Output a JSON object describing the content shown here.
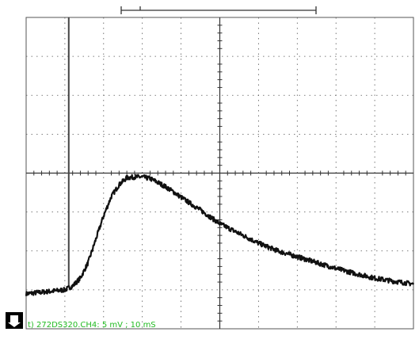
{
  "chart_data": {
    "type": "line",
    "title": "",
    "xlabel": "",
    "ylabel": "",
    "grid": true,
    "x_divisions": 10,
    "y_divisions": 8,
    "xlim": [
      0,
      10
    ],
    "ylim": [
      -4,
      4
    ],
    "trigger_x_div": 1.1,
    "status_text": "t) 272DS320.CH4: 5 mV ; 10 mS",
    "series": [
      {
        "x": [
          0.0,
          0.5,
          1.0,
          1.2,
          1.4,
          1.6,
          1.8,
          2.0,
          2.2,
          2.4,
          2.6,
          2.8,
          3.0,
          3.2,
          3.4,
          3.6,
          3.8,
          4.0,
          4.5,
          5.0,
          5.5,
          6.0,
          6.5,
          7.0,
          7.5,
          8.0,
          8.5,
          9.0,
          9.5,
          10.0
        ],
        "y": [
          -3.1,
          -3.05,
          -3.0,
          -2.9,
          -2.7,
          -2.3,
          -1.7,
          -1.1,
          -0.6,
          -0.3,
          -0.12,
          -0.1,
          -0.1,
          -0.14,
          -0.24,
          -0.35,
          -0.48,
          -0.62,
          -0.95,
          -1.3,
          -1.55,
          -1.8,
          -2.0,
          -2.15,
          -2.3,
          -2.45,
          -2.58,
          -2.7,
          -2.78,
          -2.85
        ]
      }
    ],
    "colors": {
      "trace": "#111111",
      "grid": "#555555",
      "status": "#22bb22",
      "marker_bg": "#000000",
      "marker_fg": "#ffffff"
    }
  }
}
